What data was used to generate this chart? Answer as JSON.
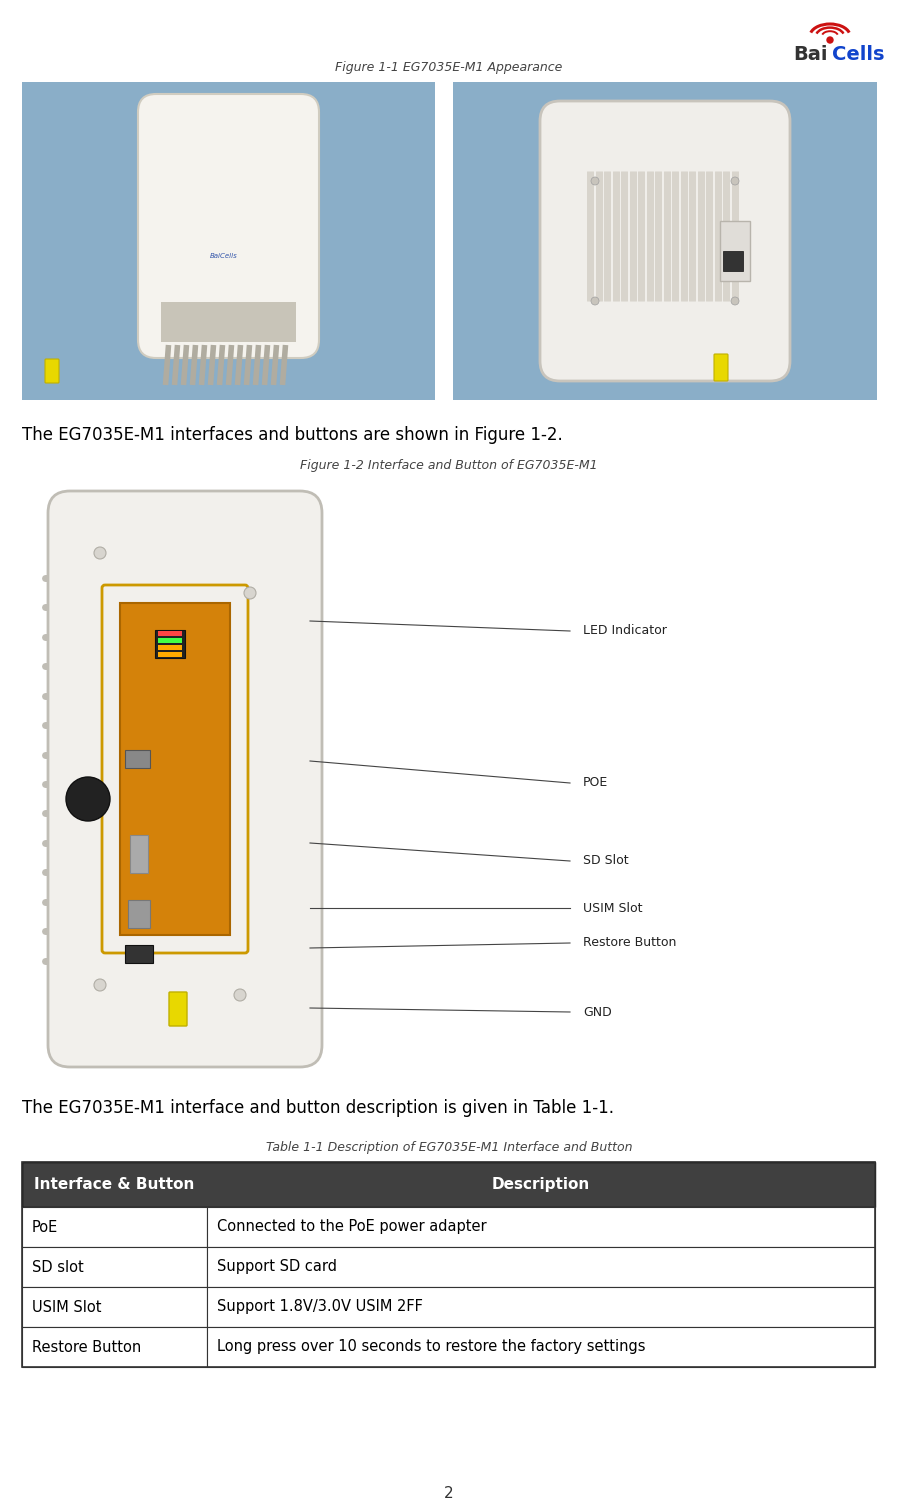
{
  "title": "Figure 1-1 EG7035E-M1 Appearance",
  "fig2_title": "Figure 1-2 Interface and Button of EG7035E-M1",
  "table_title": "Table 1-1 Description of EG7035E-M1 Interface and Button",
  "body_text1": "The EG7035E-M1 interfaces and buttons are shown in Figure 1-2.",
  "body_text2": "The EG7035E-M1 interface and button description is given in Table 1-1.",
  "page_number": "2",
  "table_headers": [
    "Interface & Button",
    "Description"
  ],
  "table_rows": [
    [
      "PoE",
      "Connected to the PoE power adapter"
    ],
    [
      "SD slot",
      "Support SD card"
    ],
    [
      "USIM Slot",
      "Support 1.8V/3.0V USIM 2FF"
    ],
    [
      "Restore Button",
      "Long press over 10 seconds to restore the factory settings"
    ]
  ],
  "fig2_labels": [
    "LED Indicator",
    "POE",
    "SD Slot",
    "USIM Slot",
    "Restore Button",
    "GND"
  ],
  "bg_color": "#ffffff",
  "image_bg": "#8aaec8",
  "table_header_bg": "#404040",
  "body_text_color": "#000000",
  "caption_color": "#444444"
}
